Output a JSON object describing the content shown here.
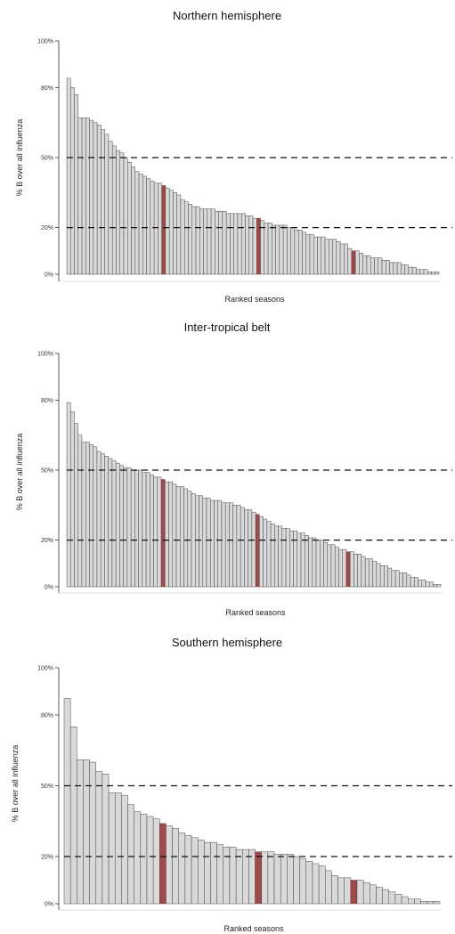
{
  "colors": {
    "bar_fill": "#d9d9d9",
    "bar_stroke": "#3a3a3a",
    "highlight_fill": "#9c4a4a",
    "reference_line": "#111111",
    "axis": "#333333"
  },
  "chart_data": [
    {
      "type": "bar",
      "title": "Northern hemisphere",
      "xlabel": "Ranked seasons",
      "ylabel": "% B over all influenza",
      "ylim": [
        0,
        100
      ],
      "yticks": [
        {
          "value": 0,
          "label": "0%"
        },
        {
          "value": 20,
          "label": "20%"
        },
        {
          "value": 50,
          "label": "50%"
        },
        {
          "value": 80,
          "label": "80%"
        },
        {
          "value": 100,
          "label": "100%"
        }
      ],
      "reference_lines": [
        50,
        20
      ],
      "grid": false,
      "values": [
        84,
        80,
        77,
        67,
        67,
        67,
        66,
        65,
        64,
        62,
        60,
        57,
        55,
        53,
        52,
        50,
        48,
        46,
        44,
        43,
        42,
        41,
        40,
        39,
        39,
        38,
        37,
        36,
        35,
        34,
        32,
        31,
        30,
        29,
        29,
        28,
        28,
        28,
        28,
        27,
        27,
        27,
        26,
        26,
        26,
        26,
        26,
        25,
        25,
        24,
        24,
        23,
        22,
        22,
        21,
        21,
        21,
        21,
        20,
        20,
        19,
        19,
        18,
        17,
        17,
        16,
        16,
        16,
        15,
        15,
        15,
        14,
        13,
        13,
        11,
        10,
        10,
        9,
        8,
        8,
        7,
        7,
        7,
        6,
        6,
        5,
        5,
        5,
        4,
        4,
        3,
        3,
        2,
        2,
        2,
        1,
        1,
        1
      ],
      "highlighted_indices": [
        25,
        50,
        75
      ]
    },
    {
      "type": "bar",
      "title": "Inter-tropical belt",
      "xlabel": "Ranked seasons",
      "ylabel": "% B over all influenza",
      "ylim": [
        0,
        100
      ],
      "yticks": [
        {
          "value": 0,
          "label": "0%"
        },
        {
          "value": 20,
          "label": "20%"
        },
        {
          "value": 50,
          "label": "50%"
        },
        {
          "value": 80,
          "label": "80%"
        },
        {
          "value": 100,
          "label": "100%"
        }
      ],
      "reference_lines": [
        50,
        20
      ],
      "grid": false,
      "values": [
        79,
        75,
        70,
        65,
        62,
        62,
        61,
        60,
        58,
        57,
        56,
        55,
        54,
        53,
        52,
        51,
        51,
        50,
        50,
        50,
        49,
        49,
        48,
        47,
        47,
        46,
        45,
        45,
        44,
        43,
        43,
        42,
        41,
        40,
        39,
        39,
        38,
        38,
        37,
        37,
        37,
        36,
        36,
        36,
        35,
        35,
        34,
        33,
        33,
        32,
        31,
        30,
        29,
        28,
        27,
        26,
        26,
        25,
        25,
        24,
        24,
        23,
        23,
        22,
        21,
        21,
        20,
        20,
        19,
        18,
        18,
        17,
        16,
        16,
        15,
        15,
        14,
        14,
        13,
        12,
        12,
        11,
        10,
        9,
        9,
        8,
        7,
        7,
        6,
        6,
        5,
        4,
        4,
        3,
        3,
        2,
        2,
        1,
        1
      ],
      "highlighted_indices": [
        25,
        50,
        74
      ]
    },
    {
      "type": "bar",
      "title": "Southern hemisphere",
      "xlabel": "Ranked seasons",
      "ylabel": "% B over all influenza",
      "ylim": [
        0,
        100
      ],
      "yticks": [
        {
          "value": 0,
          "label": "0%"
        },
        {
          "value": 20,
          "label": "20%"
        },
        {
          "value": 50,
          "label": "50%"
        },
        {
          "value": 80,
          "label": "80%"
        },
        {
          "value": 100,
          "label": "100%"
        }
      ],
      "reference_lines": [
        50,
        20
      ],
      "grid": false,
      "values": [
        87,
        75,
        61,
        61,
        60,
        56,
        55,
        47,
        47,
        46,
        42,
        39,
        38,
        37,
        36,
        34,
        33,
        32,
        30,
        29,
        28,
        27,
        26,
        26,
        25,
        24,
        24,
        23,
        23,
        23,
        22,
        22,
        22,
        21,
        21,
        21,
        20,
        19,
        18,
        17,
        16,
        14,
        12,
        11,
        11,
        10,
        10,
        9,
        8,
        7,
        6,
        5,
        4,
        3,
        2,
        2,
        1,
        1,
        1
      ],
      "highlighted_indices": [
        15,
        30,
        45
      ]
    }
  ]
}
